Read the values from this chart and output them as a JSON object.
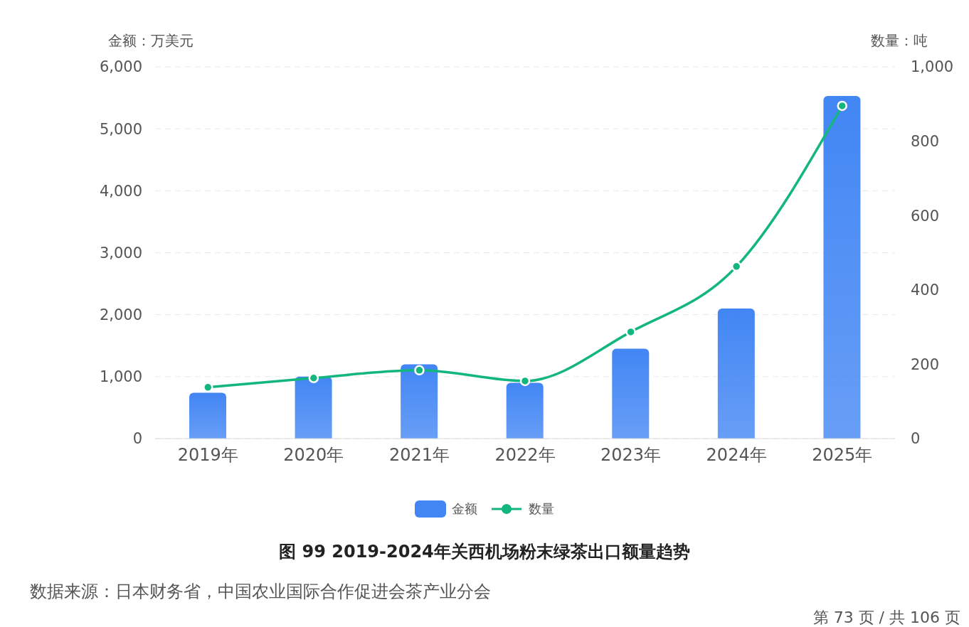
{
  "chart_data": {
    "type": "bar",
    "title": "图 99 2019-2024年关西机场粉末绿茶出口额量趋势",
    "ylabel": "金额：万美元",
    "y2label": "数量：吨",
    "annotations": [
      "数据来源：日本财务省，中国农业国际合作促进会茶产业分会",
      "第 73 页 / 共 106 页"
    ],
    "categories": [
      "2019年",
      "2020年",
      "2021年",
      "2022年",
      "2023年",
      "2024年",
      "2025年"
    ],
    "series": [
      {
        "name": "金额",
        "color": "#4286f4",
        "values": [
          740,
          1000,
          1200,
          900,
          1450,
          2100,
          5530
        ]
      },
      {
        "name": "数量",
        "type": "line",
        "axis": "y2",
        "color": "#13b67f",
        "values": [
          138,
          163,
          184,
          155,
          287,
          463,
          895
        ]
      }
    ],
    "ylim": [
      0,
      6000
    ],
    "yticks": [
      0,
      {
        "value": 1000,
        "label": "1,000"
      },
      {
        "value": 2000,
        "label": "2,000"
      },
      {
        "value": 3000,
        "label": "3,000"
      },
      {
        "value": 4000,
        "label": "4,000"
      },
      {
        "value": 5000,
        "label": "5,000"
      },
      {
        "value": 6000,
        "label": "6,000"
      }
    ],
    "y2lim": [
      0,
      1000
    ],
    "y2ticks": [
      0,
      200,
      400,
      600,
      800,
      {
        "value": 1000,
        "label": "1,000"
      }
    ],
    "grid": "y",
    "legend": "bottom",
    "marker": "circle"
  }
}
